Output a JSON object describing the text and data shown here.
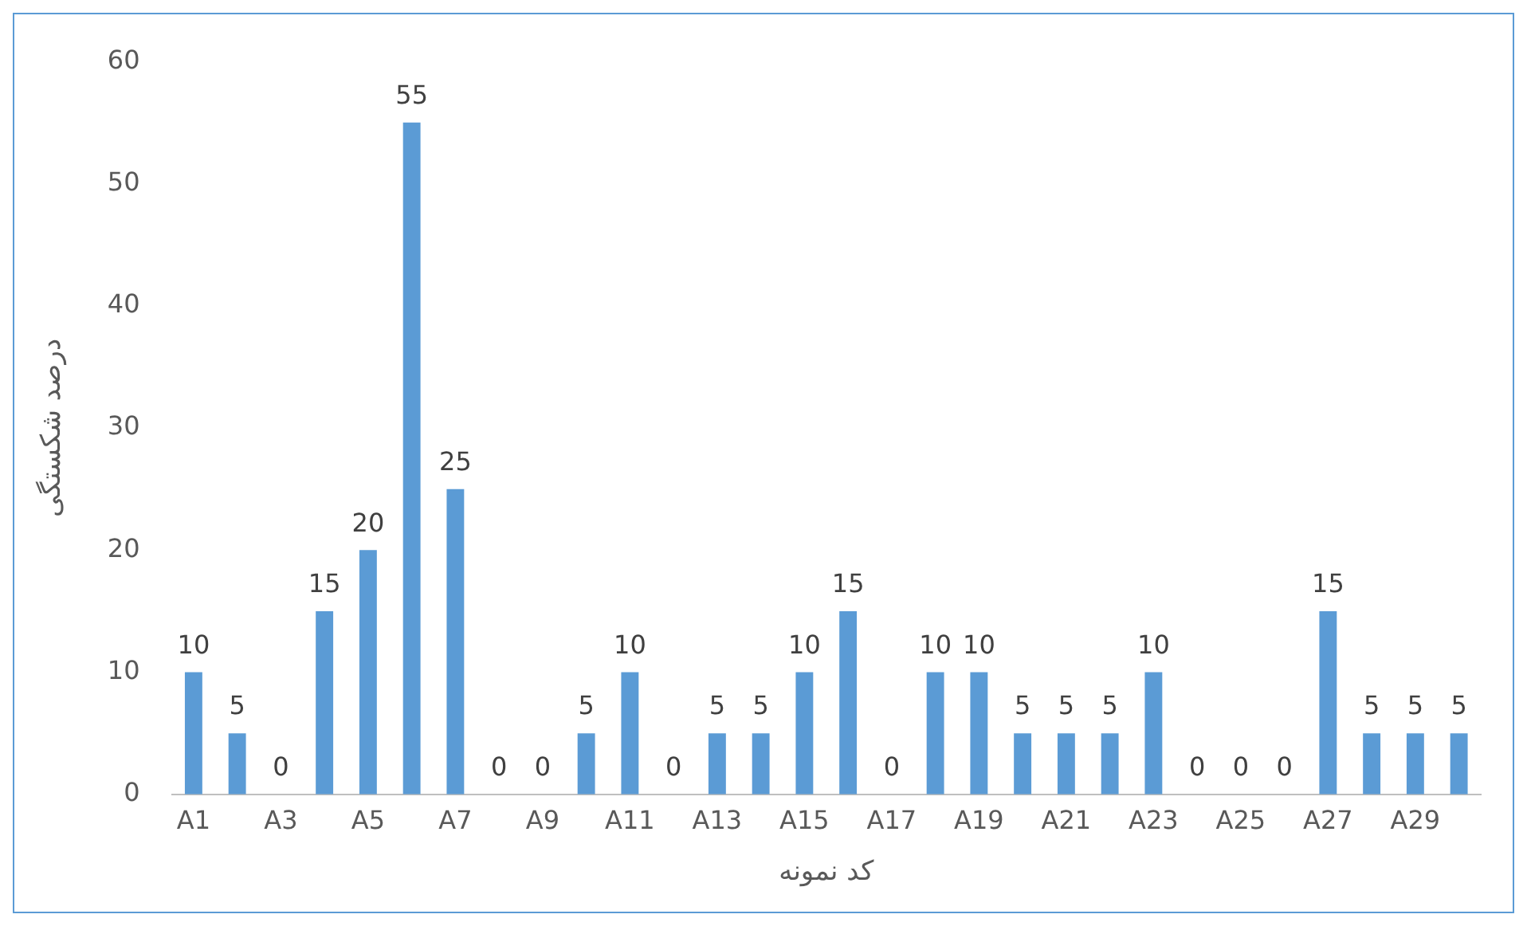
{
  "chart_data": {
    "type": "bar",
    "xlabel": "کد نمونه",
    "ylabel": "درصد شکستگی",
    "categories": [
      "A1",
      null,
      "A3",
      null,
      "A5",
      null,
      "A7",
      null,
      "A9",
      null,
      "A11",
      null,
      "A13",
      null,
      "A15",
      null,
      "A17",
      null,
      "A19",
      null,
      "A21",
      null,
      "A23",
      null,
      "A25",
      null,
      "A27",
      null,
      "A29",
      null
    ],
    "values": [
      10,
      5,
      0,
      15,
      20,
      55,
      25,
      0,
      0,
      5,
      10,
      0,
      5,
      5,
      10,
      15,
      0,
      10,
      10,
      5,
      5,
      5,
      10,
      0,
      0,
      0,
      15,
      5,
      5,
      5
    ],
    "color": "#5b9bd5",
    "ylim": [
      0,
      60
    ],
    "yticks": [
      0,
      10,
      20,
      30,
      40,
      50,
      60
    ],
    "grid": false,
    "data_labels": true
  }
}
